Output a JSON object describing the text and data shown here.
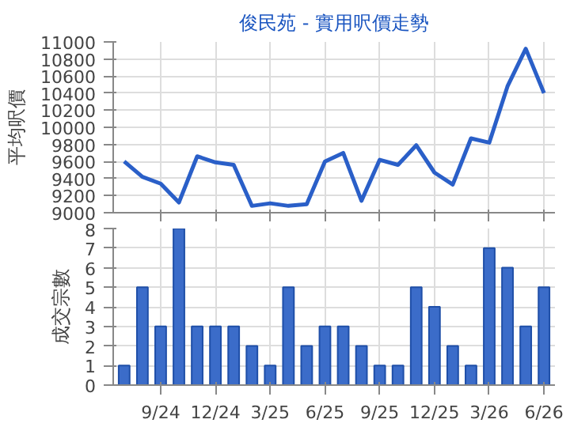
{
  "chart_data": [
    {
      "type": "line",
      "title": "俊民苑 - 實用呎價走勢",
      "ylabel": "平均呎價",
      "categories": [
        null,
        null,
        null,
        null,
        null,
        null,
        null,
        null,
        null,
        null,
        null,
        null,
        null,
        null,
        null,
        null,
        null,
        null,
        null,
        null,
        null,
        null,
        null,
        null
      ],
      "series": [
        {
          "color": "#2a5fc8",
          "values": [
            9600,
            9420,
            9340,
            9120,
            9660,
            9590,
            9560,
            9080,
            9110,
            9080,
            9100,
            9600,
            9700,
            9140,
            9620,
            9560,
            9790,
            9470,
            9330,
            9870,
            9820,
            10480,
            10920,
            10400
          ]
        }
      ],
      "ylim": [
        9000,
        11000
      ],
      "yticks": [
        9000,
        9200,
        9400,
        9600,
        9800,
        10000,
        10200,
        10400,
        10600,
        10800,
        11000
      ],
      "grid": true,
      "tick_labels": "y",
      "marker": "none",
      "line_style": "solid"
    },
    {
      "type": "bar",
      "ylabel": "成交宗數",
      "categories": [
        null,
        null,
        "9/24",
        null,
        null,
        "12/24",
        null,
        null,
        "3/25",
        null,
        null,
        "6/25",
        null,
        null,
        "9/25",
        null,
        null,
        "12/25",
        null,
        null,
        "3/26",
        null,
        null,
        "6/26"
      ],
      "series": [
        {
          "color": "#3b6cc9",
          "values": [
            1,
            5,
            3,
            8,
            3,
            3,
            3,
            2,
            1,
            5,
            2,
            3,
            3,
            2,
            1,
            1,
            5,
            4,
            2,
            1,
            7,
            6,
            3,
            5
          ]
        }
      ],
      "ylim": [
        0,
        8
      ],
      "yticks": [
        0,
        1,
        2,
        3,
        4,
        5,
        6,
        7,
        8
      ],
      "grid": true
    }
  ]
}
